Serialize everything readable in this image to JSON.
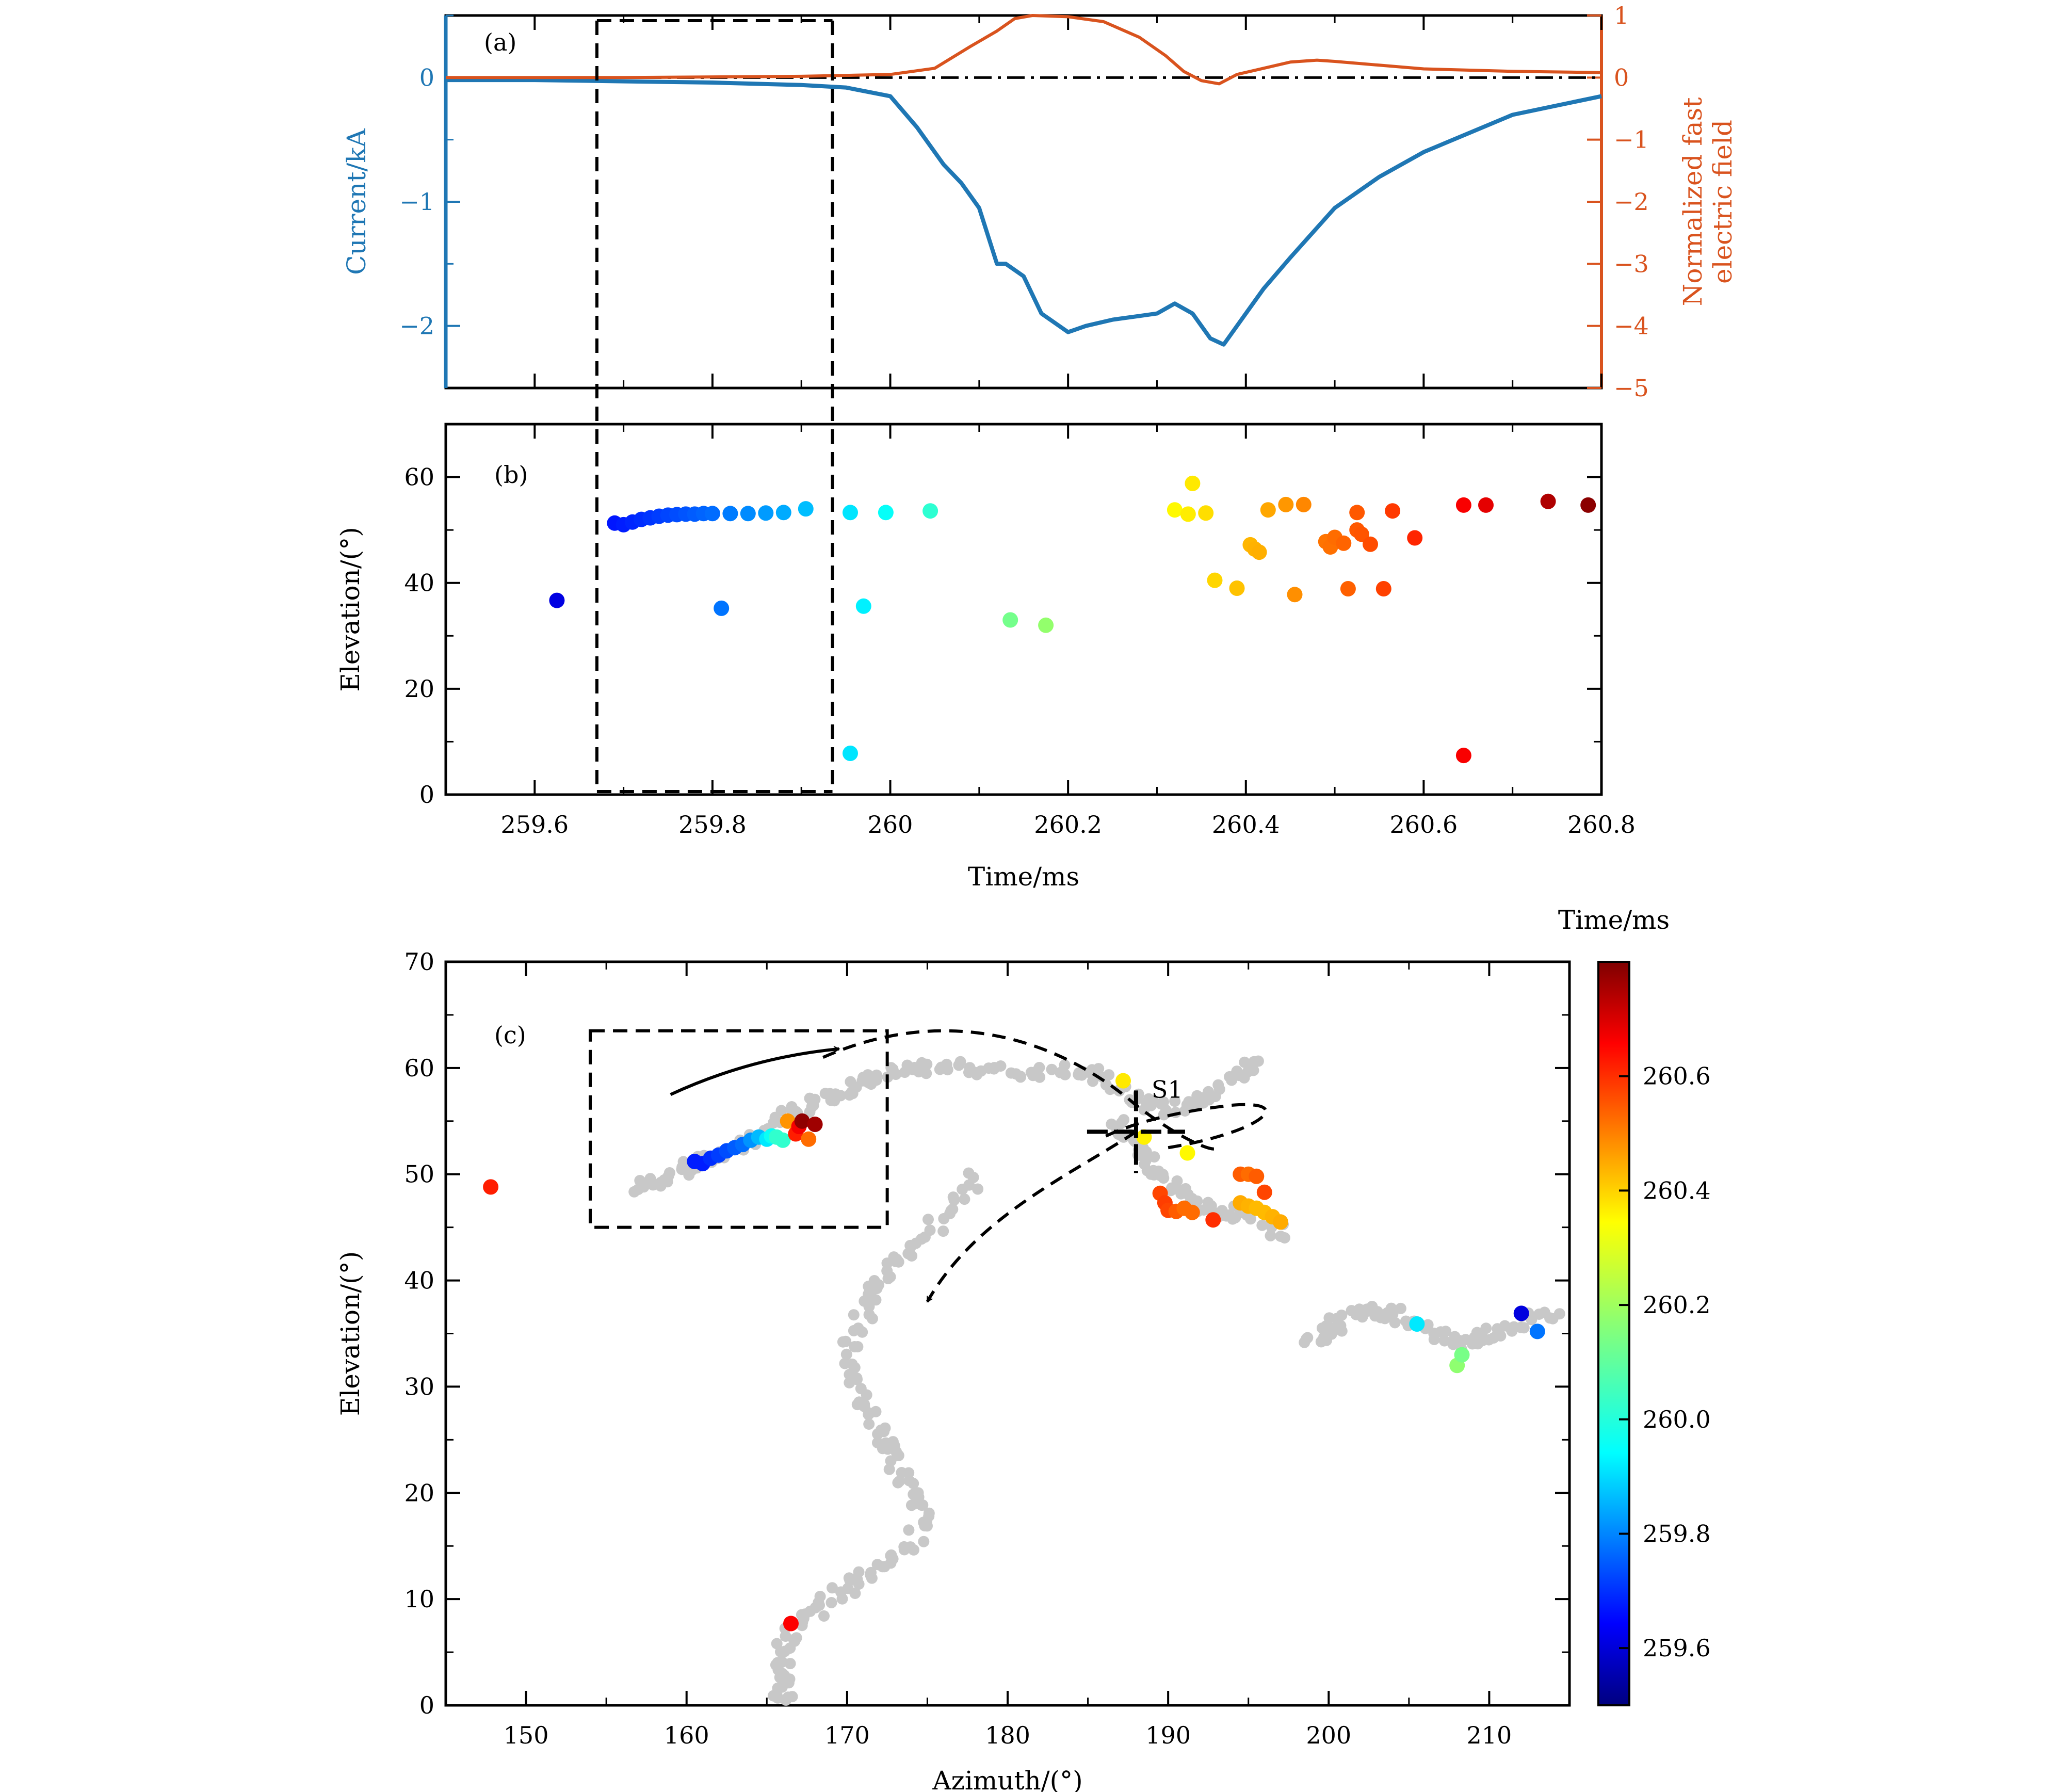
{
  "chart_data": [
    {
      "panel": "(a)",
      "type": "line",
      "xlim": [
        259.5,
        260.8
      ],
      "left_axis": {
        "label": "Current/kA",
        "ylim": [
          -2.5,
          0.5
        ],
        "ticks": [
          0,
          -1,
          -2
        ],
        "tick_labels": [
          "0",
          "−1",
          "−2"
        ],
        "color": "#1f77b4"
      },
      "right_axis": {
        "label": "Normalized fast electric field",
        "label_lines": [
          "Normalized fast",
          "electric field"
        ],
        "ylim": [
          -5,
          1
        ],
        "ticks": [
          1,
          0,
          -1,
          -2,
          -3,
          -4,
          -5
        ],
        "tick_labels": [
          "1",
          "0",
          "−1",
          "−2",
          "−3",
          "−4",
          "−5"
        ],
        "color": "#d9531e"
      },
      "series": [
        {
          "name": "Current",
          "axis": "left",
          "color": "#1f77b4",
          "x": [
            259.5,
            259.6,
            259.7,
            259.8,
            259.9,
            259.95,
            260.0,
            260.03,
            260.06,
            260.08,
            260.1,
            260.12,
            260.13,
            260.15,
            260.17,
            260.2,
            260.22,
            260.25,
            260.28,
            260.3,
            260.32,
            260.34,
            260.36,
            260.375,
            260.39,
            260.42,
            260.45,
            260.5,
            260.55,
            260.6,
            260.7,
            260.8
          ],
          "y": [
            -0.02,
            -0.02,
            -0.03,
            -0.04,
            -0.06,
            -0.08,
            -0.15,
            -0.4,
            -0.7,
            -0.85,
            -1.05,
            -1.5,
            -1.5,
            -1.6,
            -1.9,
            -2.05,
            -2.0,
            -1.95,
            -1.92,
            -1.9,
            -1.82,
            -1.9,
            -2.1,
            -2.15,
            -2.0,
            -1.7,
            -1.45,
            -1.05,
            -0.8,
            -0.6,
            -0.3,
            -0.15
          ]
        },
        {
          "name": "Normalized fast electric field",
          "axis": "right",
          "color": "#d9531e",
          "x": [
            259.5,
            259.7,
            259.9,
            260.0,
            260.05,
            260.09,
            260.12,
            260.14,
            260.16,
            260.2,
            260.24,
            260.28,
            260.31,
            260.33,
            260.35,
            260.37,
            260.39,
            260.42,
            260.45,
            260.48,
            260.5,
            260.55,
            260.6,
            260.7,
            260.8
          ],
          "y": [
            0.0,
            0.0,
            0.02,
            0.05,
            0.15,
            0.5,
            0.75,
            0.95,
            1.0,
            0.98,
            0.9,
            0.65,
            0.35,
            0.1,
            -0.05,
            -0.1,
            0.05,
            0.15,
            0.25,
            0.28,
            0.26,
            0.2,
            0.14,
            0.1,
            0.08
          ]
        }
      ],
      "reference_line": {
        "y": 0,
        "style": "dash-dot"
      },
      "annotation_box": {
        "x": [
          259.67,
          259.935
        ]
      }
    },
    {
      "panel": "(b)",
      "type": "scatter",
      "xlabel": "Time/ms",
      "ylabel": "Elevation/(°)",
      "xlim": [
        259.5,
        260.8
      ],
      "ylim": [
        0,
        70
      ],
      "xticks": [
        259.6,
        259.8,
        260,
        260.2,
        260.4,
        260.6,
        260.8
      ],
      "xtick_labels": [
        "259.6",
        "259.8",
        "260",
        "260.2",
        "260.4",
        "260.6",
        "260.8"
      ],
      "yticks": [
        0,
        20,
        40,
        60
      ],
      "ytick_labels": [
        "0",
        "20",
        "40",
        "60"
      ],
      "color_by": "x",
      "points": [
        [
          259.625,
          36.7
        ],
        [
          259.69,
          51.3
        ],
        [
          259.7,
          51.0
        ],
        [
          259.71,
          51.5
        ],
        [
          259.72,
          52.0
        ],
        [
          259.73,
          52.3
        ],
        [
          259.74,
          52.6
        ],
        [
          259.75,
          52.8
        ],
        [
          259.76,
          52.9
        ],
        [
          259.77,
          53.0
        ],
        [
          259.78,
          53.0
        ],
        [
          259.79,
          53.1
        ],
        [
          259.8,
          53.1
        ],
        [
          259.81,
          35.2
        ],
        [
          259.82,
          53.1
        ],
        [
          259.84,
          53.1
        ],
        [
          259.86,
          53.2
        ],
        [
          259.88,
          53.3
        ],
        [
          259.905,
          54.0
        ],
        [
          259.955,
          53.3
        ],
        [
          259.955,
          7.8
        ],
        [
          259.97,
          35.6
        ],
        [
          259.995,
          53.3
        ],
        [
          260.045,
          53.6
        ],
        [
          260.135,
          33.0
        ],
        [
          260.175,
          32.0
        ],
        [
          260.32,
          53.8
        ],
        [
          260.335,
          53.0
        ],
        [
          260.34,
          58.8
        ],
        [
          260.355,
          53.2
        ],
        [
          260.365,
          40.5
        ],
        [
          260.39,
          39.0
        ],
        [
          260.405,
          47.2
        ],
        [
          260.41,
          46.4
        ],
        [
          260.415,
          45.8
        ],
        [
          260.425,
          53.8
        ],
        [
          260.445,
          54.8
        ],
        [
          260.455,
          37.8
        ],
        [
          260.465,
          54.8
        ],
        [
          260.49,
          47.8
        ],
        [
          260.495,
          46.8
        ],
        [
          260.5,
          48.6
        ],
        [
          260.51,
          47.5
        ],
        [
          260.515,
          38.9
        ],
        [
          260.525,
          53.3
        ],
        [
          260.525,
          50.0
        ],
        [
          260.53,
          49.2
        ],
        [
          260.54,
          47.3
        ],
        [
          260.555,
          38.9
        ],
        [
          260.565,
          53.6
        ],
        [
          260.59,
          48.5
        ],
        [
          260.645,
          54.7
        ],
        [
          260.645,
          7.4
        ],
        [
          260.67,
          54.7
        ],
        [
          260.74,
          55.4
        ],
        [
          260.785,
          54.7
        ]
      ],
      "annotation_box": {
        "x": [
          259.67,
          259.935
        ]
      }
    },
    {
      "panel": "(c)",
      "type": "scatter",
      "xlabel": "Azimuth/(°)",
      "ylabel": "Elevation/(°)",
      "xlim": [
        145,
        215
      ],
      "ylim": [
        0,
        70
      ],
      "xticks": [
        150,
        160,
        170,
        180,
        190,
        200,
        210
      ],
      "xtick_labels": [
        "150",
        "160",
        "170",
        "180",
        "190",
        "200",
        "210"
      ],
      "yticks": [
        0,
        10,
        20,
        30,
        40,
        50,
        60,
        70
      ],
      "ytick_labels": [
        "0",
        "10",
        "20",
        "30",
        "40",
        "50",
        "60",
        "70"
      ],
      "background_color": "#c8c8c8",
      "background_tracks": [
        [
          [
            157,
            48.5
          ],
          [
            159,
            50
          ],
          [
            161,
            51
          ],
          [
            163,
            52.5
          ],
          [
            165,
            54
          ],
          [
            167,
            56
          ],
          [
            169,
            57.5
          ],
          [
            171,
            58.5
          ],
          [
            173,
            59.5
          ],
          [
            175,
            60
          ],
          [
            178,
            60
          ],
          [
            181,
            59.5
          ],
          [
            184,
            60
          ],
          [
            186,
            59
          ],
          [
            188,
            57
          ],
          [
            190,
            56
          ],
          [
            192,
            57
          ],
          [
            194,
            59
          ],
          [
            196,
            61
          ]
        ],
        [
          [
            187,
            55
          ],
          [
            188,
            53
          ],
          [
            189,
            51
          ],
          [
            190,
            49
          ],
          [
            192,
            47
          ],
          [
            194,
            46.5
          ],
          [
            196,
            46
          ],
          [
            197,
            44
          ]
        ],
        [
          [
            178,
            50
          ],
          [
            176,
            46
          ],
          [
            174,
            43
          ],
          [
            172,
            40
          ],
          [
            171,
            37
          ],
          [
            170,
            33
          ],
          [
            171,
            29
          ],
          [
            172,
            26
          ],
          [
            173,
            23
          ],
          [
            174,
            20
          ],
          [
            175,
            17
          ],
          [
            173,
            14
          ],
          [
            171,
            12
          ],
          [
            169,
            10
          ],
          [
            167,
            8
          ],
          [
            166,
            5
          ],
          [
            166,
            2
          ],
          [
            166,
            0
          ]
        ],
        [
          [
            199,
            34.5
          ],
          [
            200,
            35.5
          ],
          [
            202,
            37
          ],
          [
            204,
            37
          ],
          [
            206,
            35.5
          ],
          [
            208,
            34
          ],
          [
            210,
            35
          ],
          [
            212,
            36
          ],
          [
            214,
            37
          ]
        ]
      ],
      "points": [
        [
          147.8,
          48.8,
          260.6
        ],
        [
          160.5,
          51.2,
          259.7
        ],
        [
          161.0,
          51.0,
          259.7
        ],
        [
          161.5,
          51.5,
          259.72
        ],
        [
          162.0,
          51.8,
          259.74
        ],
        [
          162.5,
          52.2,
          259.76
        ],
        [
          163.0,
          52.5,
          259.78
        ],
        [
          163.5,
          52.8,
          259.8
        ],
        [
          164.0,
          53.2,
          259.85
        ],
        [
          164.5,
          53.5,
          259.9
        ],
        [
          165.0,
          53.3,
          259.96
        ],
        [
          165.3,
          53.6,
          260.0
        ],
        [
          165.6,
          53.5,
          260.05
        ],
        [
          166.0,
          53.2,
          260.05
        ],
        [
          166.3,
          55.0,
          260.45
        ],
        [
          166.8,
          53.8,
          260.6
        ],
        [
          167.0,
          54.5,
          260.65
        ],
        [
          167.2,
          55.0,
          260.78
        ],
        [
          167.6,
          53.3,
          260.5
        ],
        [
          168.0,
          54.7,
          260.76
        ],
        [
          166.5,
          7.7,
          260.64
        ],
        [
          187.2,
          58.8,
          260.34
        ],
        [
          188.5,
          53.5,
          260.33
        ],
        [
          191.2,
          52.0,
          260.32
        ],
        [
          189.5,
          48.2,
          260.55
        ],
        [
          189.8,
          47.3,
          260.56
        ],
        [
          190.0,
          46.6,
          260.55
        ],
        [
          190.5,
          46.5,
          260.52
        ],
        [
          191.0,
          46.8,
          260.5
        ],
        [
          191.5,
          46.4,
          260.5
        ],
        [
          192.8,
          45.7,
          260.58
        ],
        [
          194.5,
          50.0,
          260.52
        ],
        [
          195.0,
          50.0,
          260.5
        ],
        [
          195.5,
          49.8,
          260.52
        ],
        [
          196.0,
          48.3,
          260.55
        ],
        [
          194.5,
          47.3,
          260.42
        ],
        [
          195.0,
          47.0,
          260.41
        ],
        [
          195.5,
          46.8,
          260.4
        ],
        [
          196.0,
          46.4,
          260.4
        ],
        [
          196.5,
          46.0,
          260.41
        ],
        [
          197.0,
          45.5,
          260.42
        ],
        [
          205.5,
          35.9,
          259.96
        ],
        [
          208.0,
          32.0,
          260.17
        ],
        [
          208.3,
          33.0,
          260.14
        ],
        [
          212.0,
          36.9,
          259.62
        ],
        [
          213.0,
          35.2,
          259.81
        ]
      ],
      "annotations": [
        {
          "text": "S1",
          "x": 188,
          "y": 54
        },
        {
          "shape": "dashed box",
          "x": [
            154,
            172.5
          ],
          "y": [
            45,
            63.5
          ]
        }
      ],
      "colorbar": {
        "title": "Time/ms",
        "range": [
          259.5,
          260.8
        ],
        "ticks": [
          259.6,
          259.8,
          260.0,
          260.2,
          260.4,
          260.6
        ],
        "tick_labels": [
          "259.6",
          "259.8",
          "260.0",
          "260.2",
          "260.4",
          "260.6"
        ],
        "colormap": "jet"
      }
    }
  ]
}
